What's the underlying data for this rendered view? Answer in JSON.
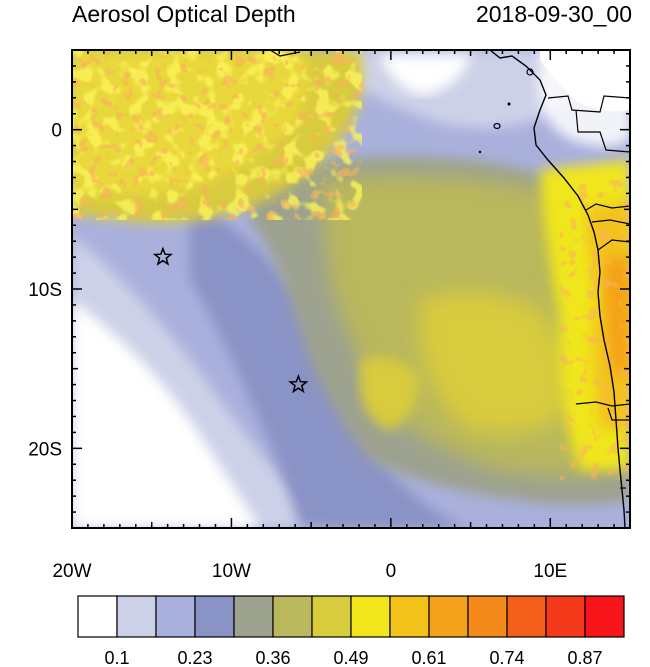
{
  "title": "Aerosol Optical Depth",
  "timestamp": "2018-09-30_00",
  "map": {
    "lon_range": [
      -20,
      15
    ],
    "lat_range": [
      -25,
      5
    ],
    "x_ticks": [
      {
        "value": -20,
        "label": "20W"
      },
      {
        "value": -10,
        "label": "10W"
      },
      {
        "value": 0,
        "label": "0"
      },
      {
        "value": 10,
        "label": "10E"
      }
    ],
    "y_ticks": [
      {
        "value": 0,
        "label": "0"
      },
      {
        "value": -10,
        "label": "10S"
      },
      {
        "value": -20,
        "label": "20S"
      }
    ],
    "stars": [
      {
        "name": "star-marker-north",
        "lon": -14.3,
        "lat": -8.0
      },
      {
        "name": "star-marker-south",
        "lon": -5.8,
        "lat": -16.0
      }
    ]
  },
  "colorbar": {
    "colors": [
      "#ffffff",
      "#cdd1e8",
      "#a9b0dc",
      "#8a93c6",
      "#9da28f",
      "#b9b85c",
      "#d8cb3c",
      "#f0e61a",
      "#f3c21a",
      "#f4a219",
      "#f48a19",
      "#f4601a",
      "#f43a1a",
      "#f7141a"
    ],
    "labels": [
      "0.1",
      "0.23",
      "0.36",
      "0.49",
      "0.61",
      "0.74",
      "0.87"
    ]
  }
}
